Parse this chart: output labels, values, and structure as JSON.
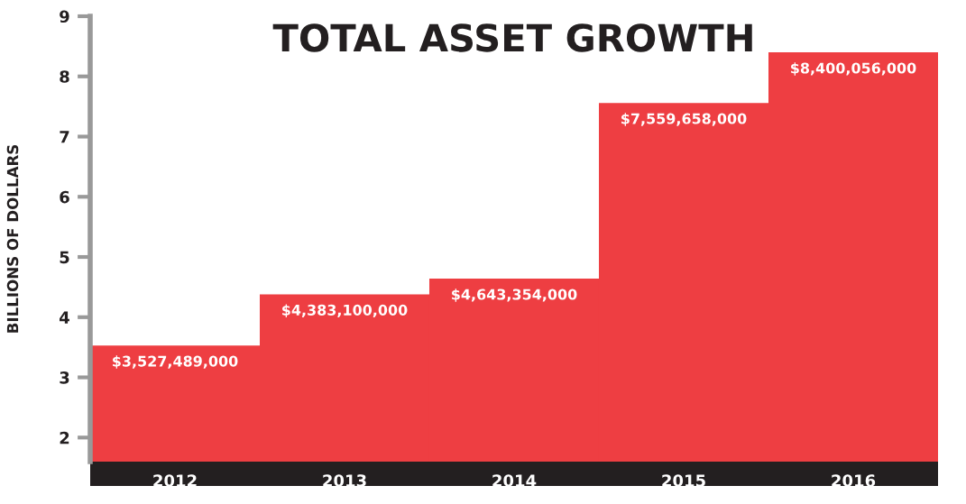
{
  "chart_data": {
    "type": "bar",
    "title": "TOTAL ASSET GROWTH",
    "ylabel": "BILLIONS OF DOLLARS",
    "categories": [
      "2012",
      "2013",
      "2014",
      "2015",
      "2016"
    ],
    "values": [
      3.53,
      4.38,
      4.64,
      7.56,
      8.4
    ],
    "annotations": [
      {
        "text": "$3,527,489,000",
        "x": "2012",
        "y": 3.53
      },
      {
        "text": "$4,383,100,000",
        "x": "2013",
        "y": 4.38
      },
      {
        "text": "$4,643,354,000",
        "x": "2014",
        "y": 4.64
      },
      {
        "text": "$7,559,658,000",
        "x": "2015",
        "y": 7.56
      },
      {
        "text": "$8,400,056,000",
        "x": "2016",
        "y": 8.4
      }
    ],
    "color": "#ee3e42",
    "ylim": [
      1.6,
      9
    ],
    "yticks": [
      2,
      3,
      4,
      5,
      6,
      7,
      8,
      9
    ],
    "grid": false,
    "legend": false
  }
}
